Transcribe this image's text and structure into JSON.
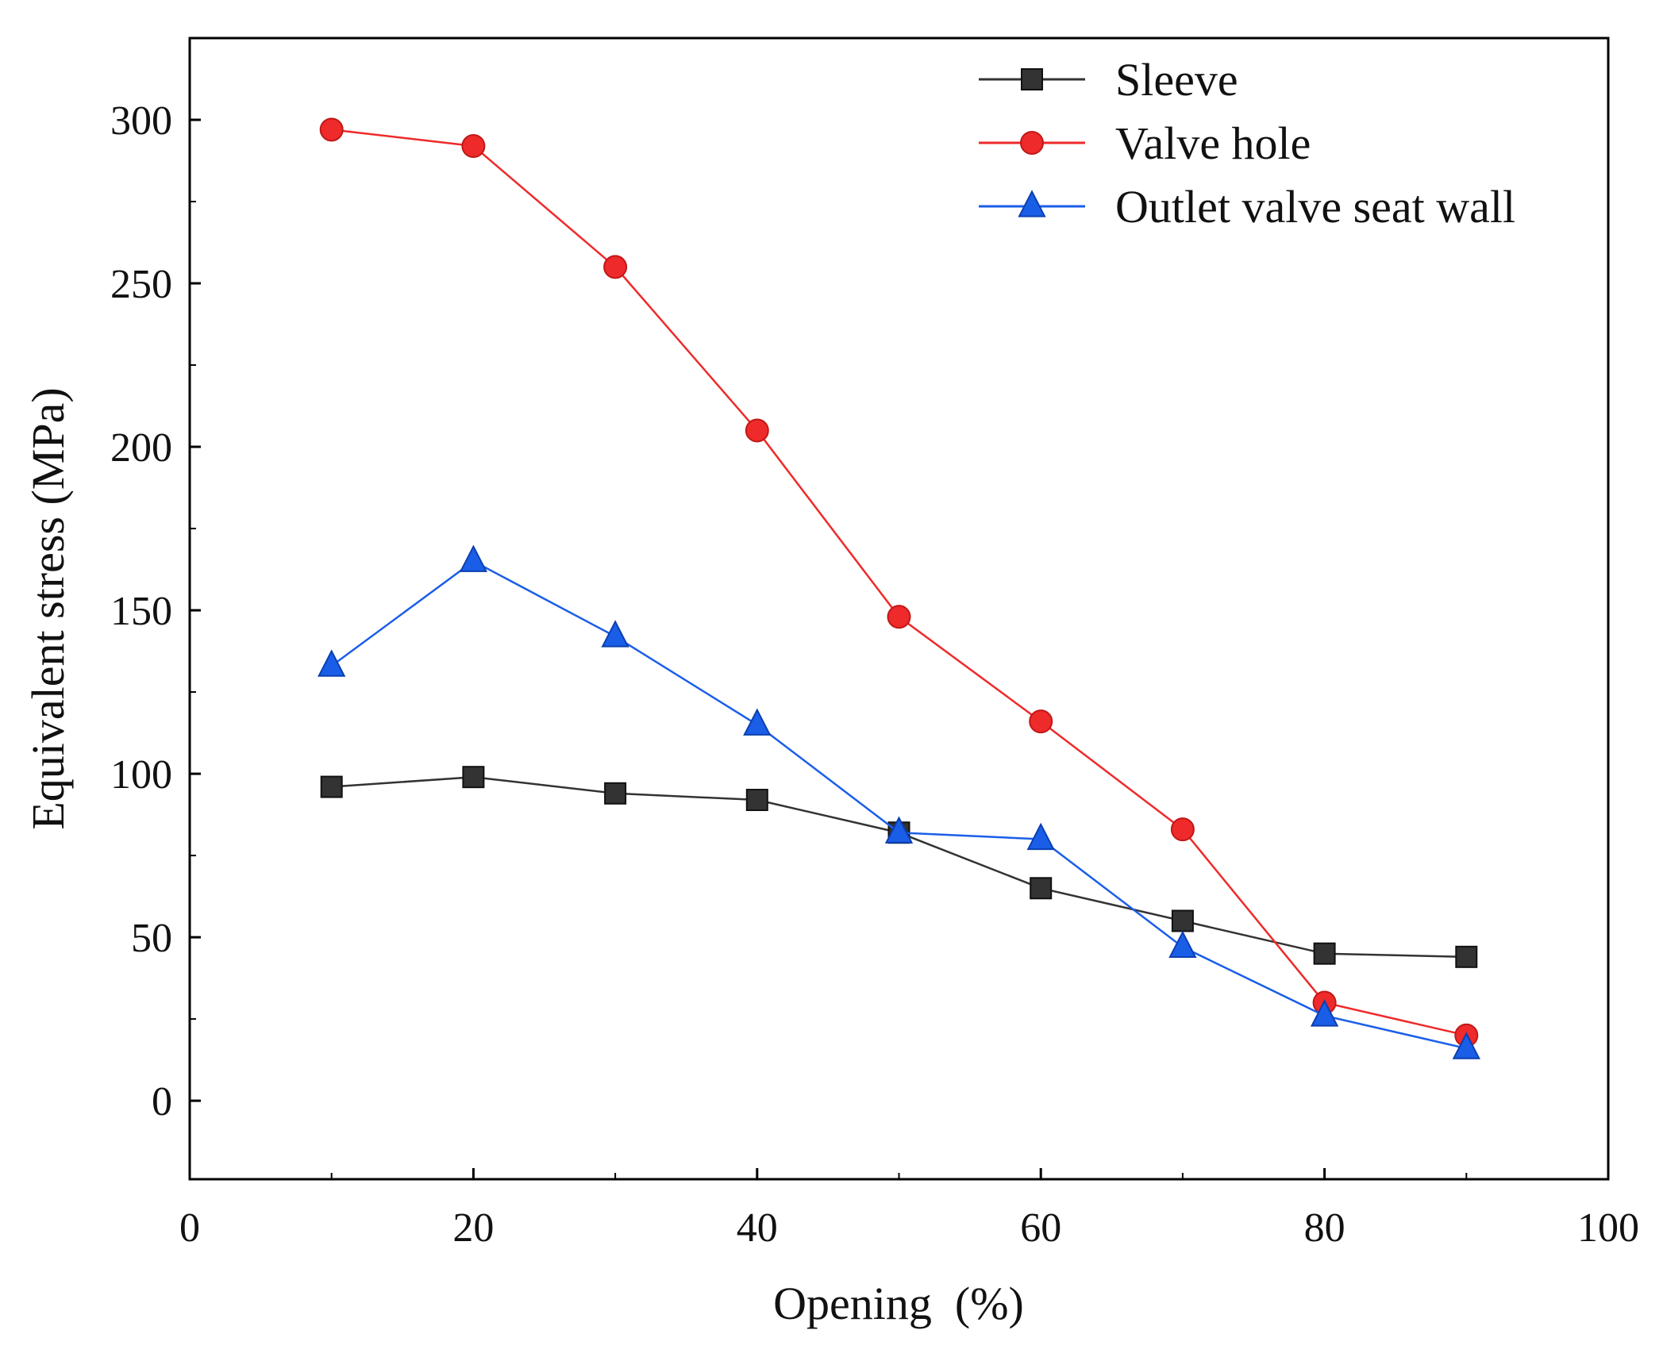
{
  "chart_data": {
    "type": "line",
    "title": "",
    "xlabel": "Opening  (%)",
    "ylabel": "Equivalent stress (MPa)",
    "xlim": [
      0,
      100
    ],
    "ylim": [
      -24,
      325
    ],
    "xticks": [
      0,
      20,
      40,
      60,
      80,
      100
    ],
    "yticks": [
      0,
      50,
      100,
      150,
      200,
      250,
      300
    ],
    "grid": false,
    "legend_position": "top-right",
    "x": [
      10,
      20,
      30,
      40,
      50,
      60,
      70,
      80,
      90
    ],
    "series": [
      {
        "name": "Sleeve",
        "marker": "square",
        "color": "#333333",
        "values": [
          96,
          99,
          94,
          92,
          82,
          65,
          55,
          45,
          44
        ]
      },
      {
        "name": "Valve hole",
        "marker": "circle",
        "color": "#ee2a2a",
        "values": [
          297,
          292,
          255,
          205,
          148,
          116,
          83,
          30,
          20
        ]
      },
      {
        "name": "Outlet valve seat wall",
        "marker": "triangle",
        "color": "#1a5ee8",
        "values": [
          133,
          165,
          142,
          115,
          82,
          80,
          47,
          26,
          16
        ]
      }
    ]
  }
}
